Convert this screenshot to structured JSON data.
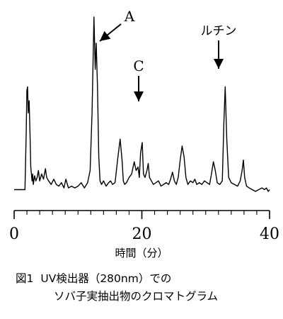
{
  "chart_data": {
    "type": "line",
    "title": "",
    "xlabel": "時間（分）",
    "ylabel": "",
    "xlim": [
      0,
      40
    ],
    "ticks": [
      {
        "value": 0,
        "label": "0"
      },
      {
        "value": 20,
        "label": "20"
      },
      {
        "value": 40,
        "label": "40"
      }
    ],
    "series": [
      {
        "x": [
          0,
          1.7,
          1.9,
          2.0,
          2.1,
          2.2,
          2.35,
          2.5,
          2.6,
          2.8,
          2.9,
          3.0,
          3.2,
          3.4,
          3.6,
          3.8,
          4.0,
          4.3,
          4.6,
          4.9,
          5.1,
          5.4,
          5.8,
          6.2,
          6.6,
          7.0,
          7.4,
          7.8,
          8.1,
          8.5,
          9.0,
          9.5,
          10.0,
          10.5,
          11.0,
          11.5,
          11.9,
          12.2,
          12.5,
          12.7,
          12.85,
          13.05,
          13.25,
          13.45,
          13.7,
          14.0,
          14.4,
          14.8,
          15.1,
          15.4,
          15.8,
          16.2,
          16.6,
          16.9,
          17.1,
          17.3,
          17.6,
          18.0,
          18.4,
          18.8,
          19.1,
          19.4,
          19.6,
          19.8,
          20.05,
          20.25,
          20.5,
          20.8,
          21.0,
          21.2,
          21.5,
          21.8,
          22.2,
          22.6,
          23.0,
          23.4,
          23.8,
          24.2,
          24.5,
          24.8,
          25.1,
          25.4,
          25.7,
          26.0,
          26.3,
          26.6,
          26.9,
          27.2,
          27.6,
          28.0,
          28.3,
          28.6,
          29.0,
          29.4,
          29.8,
          30.2,
          30.6,
          30.9,
          31.2,
          31.5,
          31.8,
          32.2,
          32.6,
          32.85,
          33.05,
          33.3,
          33.6,
          34.0,
          34.5,
          35.0,
          35.4,
          35.7,
          35.9,
          36.1,
          36.4,
          36.8,
          37.3,
          37.8,
          38.3,
          38.8,
          39.2,
          39.5,
          39.8,
          40.0
        ],
        "values": [
          1,
          1,
          35,
          58,
          60,
          45,
          52,
          30,
          14,
          6,
          10,
          4,
          9,
          6,
          8,
          12,
          6,
          10,
          7,
          13,
          8,
          6,
          4,
          7,
          4,
          3,
          5,
          2,
          7,
          2,
          3,
          2,
          3,
          5,
          2,
          5,
          12,
          45,
          100,
          70,
          85,
          60,
          20,
          6,
          4,
          6,
          3,
          5,
          6,
          4,
          5,
          18,
          30,
          18,
          6,
          4,
          5,
          8,
          10,
          17,
          12,
          14,
          8,
          22,
          28,
          10,
          8,
          12,
          16,
          8,
          6,
          4,
          5,
          6,
          3,
          4,
          5,
          4,
          7,
          11,
          6,
          4,
          8,
          18,
          26,
          20,
          8,
          4,
          6,
          5,
          7,
          4,
          5,
          4,
          6,
          5,
          4,
          10,
          17,
          12,
          5,
          4,
          6,
          40,
          60,
          30,
          8,
          5,
          4,
          3,
          6,
          12,
          18,
          8,
          3,
          2,
          1,
          0,
          1,
          2,
          1,
          2,
          0,
          1
        ]
      }
    ],
    "annotations": [
      {
        "label": "A",
        "x": 13.2
      },
      {
        "label": "C",
        "x": 20.1
      },
      {
        "label": "ルチン",
        "x": 32.9
      }
    ]
  },
  "caption": {
    "prefix": "図1",
    "line1": "UV検出器（280nm）での",
    "line2": "ソバ子実抽出物のクロマトグラム"
  }
}
